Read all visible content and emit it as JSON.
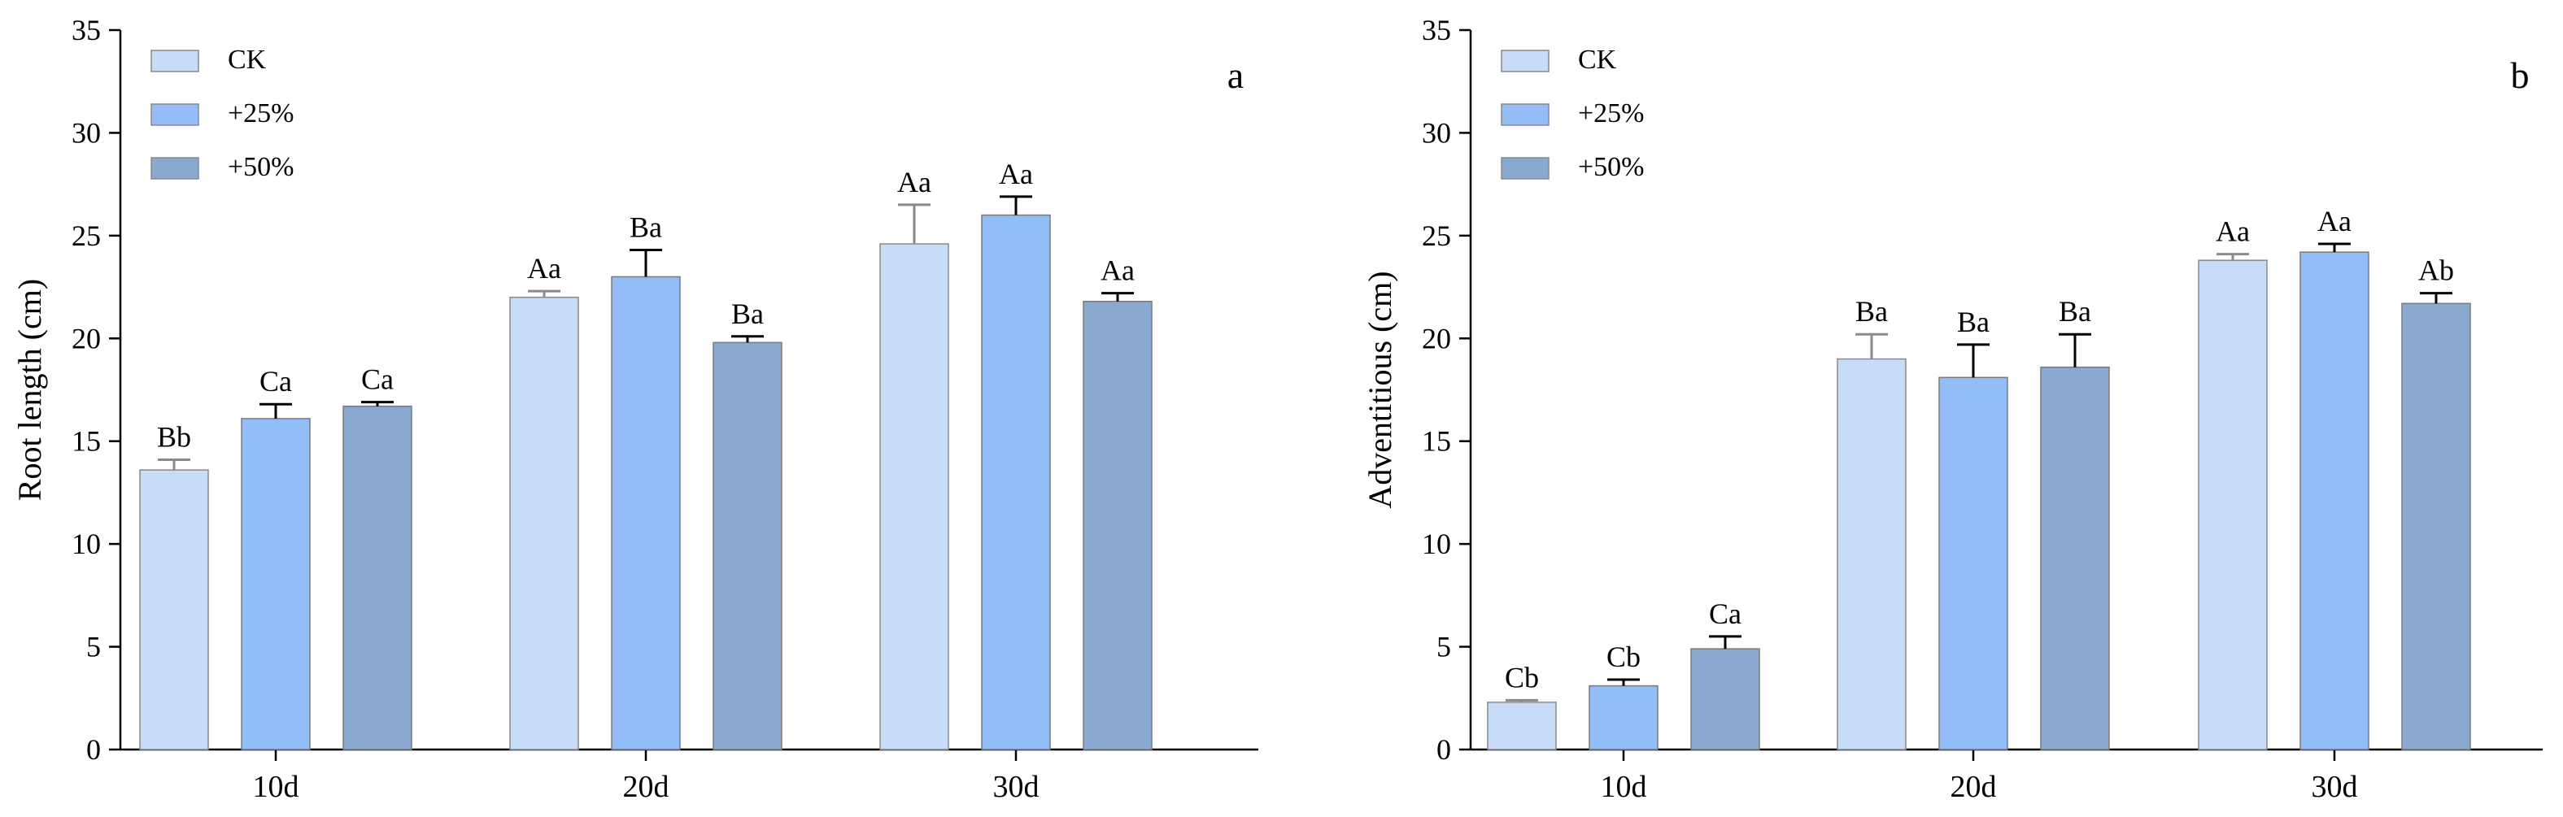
{
  "colors": {
    "CK": "#c6dcf7",
    "+25%": "#93bdf7",
    "+50%": "#8aa9d0",
    "CK_stroke": "#8a8a8a",
    "err": "#000000"
  },
  "chart_data": [
    {
      "type": "bar",
      "panel_letter": "a",
      "title": "",
      "xlabel": "",
      "ylabel": "Root length (cm)",
      "ylim": [
        0,
        35
      ],
      "yticks": [
        "0",
        "5",
        "10",
        "15",
        "20",
        "25",
        "30",
        "35"
      ],
      "categories": [
        "10d",
        "20d",
        "30d"
      ],
      "legend_position": "top-left",
      "series": [
        {
          "name": "CK",
          "values": [
            13.6,
            22.0,
            24.6
          ],
          "errors": [
            0.5,
            0.3,
            1.9
          ],
          "labels": [
            "Bb",
            "Aa",
            "Aa"
          ]
        },
        {
          "name": "+25%",
          "values": [
            16.1,
            23.0,
            26.0
          ],
          "errors": [
            0.7,
            1.3,
            0.9
          ],
          "labels": [
            "Ca",
            "Ba",
            "Aa"
          ]
        },
        {
          "name": "+50%",
          "values": [
            16.7,
            19.8,
            21.8
          ],
          "errors": [
            0.2,
            0.3,
            0.4
          ],
          "labels": [
            "Ca",
            "Ba",
            "Aa"
          ]
        }
      ]
    },
    {
      "type": "bar",
      "panel_letter": "b",
      "title": "",
      "xlabel": "",
      "ylabel": "Adventitious (cm)",
      "ylim": [
        0,
        35
      ],
      "yticks": [
        "0",
        "5",
        "10",
        "15",
        "20",
        "25",
        "30",
        "35"
      ],
      "categories": [
        "10d",
        "20d",
        "30d"
      ],
      "legend_position": "top-left",
      "series": [
        {
          "name": "CK",
          "values": [
            2.3,
            19.0,
            23.8
          ],
          "errors": [
            0.1,
            1.2,
            0.3
          ],
          "labels": [
            "Cb",
            "Ba",
            "Aa"
          ]
        },
        {
          "name": "+25%",
          "values": [
            3.1,
            18.1,
            24.2
          ],
          "errors": [
            0.3,
            1.6,
            0.4
          ],
          "labels": [
            "Cb",
            "Ba",
            "Aa"
          ]
        },
        {
          "name": "+50%",
          "values": [
            4.9,
            18.6,
            21.7
          ],
          "errors": [
            0.6,
            1.6,
            0.5
          ],
          "labels": [
            "Ca",
            "Ba",
            "Ab"
          ]
        }
      ]
    }
  ]
}
